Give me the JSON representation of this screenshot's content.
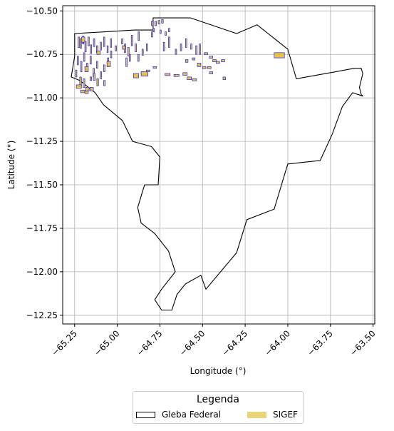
{
  "colors": {
    "sigef_fill": "#e8c146",
    "sigef_edge": "#2222dd",
    "gleba_edge": "#000000",
    "grid": "#b0b0b0"
  },
  "chart_data": {
    "type": "map",
    "xlabel": "Longitude (°)",
    "ylabel": "Latitude (°)",
    "xlim": [
      -65.32,
      -63.49
    ],
    "ylim": [
      -12.3,
      -10.47
    ],
    "x_ticks": [
      -65.25,
      -65.0,
      -64.75,
      -64.5,
      -64.25,
      -64.0,
      -63.75,
      -63.5
    ],
    "y_ticks": [
      -10.5,
      -10.75,
      -11.0,
      -11.25,
      -11.5,
      -11.75,
      -12.0,
      -12.25
    ],
    "x_tick_labels": [
      "−65.25",
      "−65.00",
      "−64.75",
      "−64.50",
      "−64.25",
      "−64.00",
      "−63.75",
      "−63.50"
    ],
    "y_tick_labels": [
      "−10.50",
      "−10.75",
      "−11.00",
      "−11.25",
      "−11.50",
      "−11.75",
      "−12.00",
      "−12.25"
    ],
    "grid": true,
    "legend": {
      "title": "Legenda",
      "position": "bottom-center",
      "entries": [
        {
          "label": "Gleba Federal",
          "style": "outline"
        },
        {
          "label": "SIGEF",
          "style": "fill"
        }
      ]
    },
    "gleba_outline": [
      [
        -65.25,
        -10.63
      ],
      [
        -65.07,
        -10.62
      ],
      [
        -64.9,
        -10.61
      ],
      [
        -64.79,
        -10.61
      ],
      [
        -64.79,
        -10.54
      ],
      [
        -64.57,
        -10.54
      ],
      [
        -64.3,
        -10.63
      ],
      [
        -64.18,
        -10.58
      ],
      [
        -64.0,
        -10.72
      ],
      [
        -63.95,
        -10.89
      ],
      [
        -63.72,
        -10.85
      ],
      [
        -63.61,
        -10.83
      ],
      [
        -63.57,
        -10.83
      ],
      [
        -63.56,
        -10.86
      ],
      [
        -63.58,
        -10.94
      ],
      [
        -63.57,
        -10.98
      ],
      [
        -63.56,
        -10.99
      ],
      [
        -63.62,
        -10.97
      ],
      [
        -63.68,
        -11.05
      ],
      [
        -63.74,
        -11.21
      ],
      [
        -63.81,
        -11.36
      ],
      [
        -64.0,
        -11.38
      ],
      [
        -64.08,
        -11.64
      ],
      [
        -64.24,
        -11.7
      ],
      [
        -64.3,
        -11.89
      ],
      [
        -64.48,
        -12.1
      ],
      [
        -64.51,
        -12.02
      ],
      [
        -64.6,
        -12.07
      ],
      [
        -64.65,
        -12.13
      ],
      [
        -64.68,
        -12.22
      ],
      [
        -64.74,
        -12.22
      ],
      [
        -64.78,
        -12.16
      ],
      [
        -64.74,
        -12.1
      ],
      [
        -64.66,
        -12.0
      ],
      [
        -64.7,
        -11.88
      ],
      [
        -64.78,
        -11.78
      ],
      [
        -64.86,
        -11.72
      ],
      [
        -64.88,
        -11.63
      ],
      [
        -64.84,
        -11.5
      ],
      [
        -64.76,
        -11.5
      ],
      [
        -64.75,
        -11.34
      ],
      [
        -64.8,
        -11.28
      ],
      [
        -64.91,
        -11.25
      ],
      [
        -64.97,
        -11.13
      ],
      [
        -65.08,
        -11.04
      ],
      [
        -65.13,
        -10.97
      ],
      [
        -65.22,
        -10.9
      ],
      [
        -65.27,
        -10.88
      ],
      [
        -65.25,
        -10.76
      ]
    ],
    "sigef_parcels": [
      [
        -65.23,
        -10.65,
        0.008,
        0.06
      ],
      [
        -65.218,
        -10.66,
        0.008,
        0.055
      ],
      [
        -65.204,
        -10.645,
        0.008,
        0.045
      ],
      [
        -65.19,
        -10.675,
        0.008,
        0.06
      ],
      [
        -65.172,
        -10.65,
        0.008,
        0.05
      ],
      [
        -65.158,
        -10.695,
        0.008,
        0.05
      ],
      [
        -65.14,
        -10.66,
        0.008,
        0.045
      ],
      [
        -65.122,
        -10.7,
        0.008,
        0.04
      ],
      [
        -65.1,
        -10.68,
        0.007,
        0.045
      ],
      [
        -65.08,
        -10.65,
        0.007,
        0.055
      ],
      [
        -65.06,
        -10.7,
        0.007,
        0.04
      ],
      [
        -65.04,
        -10.66,
        0.007,
        0.05
      ],
      [
        -65.012,
        -10.7,
        0.008,
        0.03
      ],
      [
        -65.235,
        -10.76,
        0.008,
        0.05
      ],
      [
        -65.215,
        -10.79,
        0.008,
        0.06
      ],
      [
        -65.198,
        -10.74,
        0.008,
        0.05
      ],
      [
        -65.18,
        -10.8,
        0.008,
        0.05
      ],
      [
        -65.16,
        -10.76,
        0.008,
        0.045
      ],
      [
        -65.142,
        -10.83,
        0.008,
        0.05
      ],
      [
        -65.122,
        -10.79,
        0.008,
        0.04
      ],
      [
        -65.1,
        -10.85,
        0.008,
        0.04
      ],
      [
        -65.08,
        -10.81,
        0.008,
        0.04
      ],
      [
        -65.058,
        -10.77,
        0.008,
        0.05
      ],
      [
        -65.04,
        -10.73,
        0.008,
        0.04
      ],
      [
        -65.22,
        -10.88,
        0.01,
        0.05
      ],
      [
        -65.2,
        -10.89,
        0.01,
        0.05
      ],
      [
        -65.185,
        -10.94,
        0.02,
        0.02
      ],
      [
        -65.16,
        -10.94,
        0.02,
        0.02
      ],
      [
        -65.14,
        -10.86,
        0.01,
        0.04
      ],
      [
        -65.12,
        -10.89,
        0.01,
        0.04
      ],
      [
        -65.24,
        -10.925,
        0.03,
        0.02
      ],
      [
        -65.215,
        -10.955,
        0.025,
        0.015
      ],
      [
        -65.19,
        -10.96,
        0.02,
        0.015
      ],
      [
        -64.975,
        -10.66,
        0.008,
        0.03
      ],
      [
        -64.958,
        -10.69,
        0.008,
        0.05
      ],
      [
        -64.938,
        -10.71,
        0.008,
        0.05
      ],
      [
        -64.918,
        -10.64,
        0.008,
        0.06
      ],
      [
        -64.895,
        -10.69,
        0.008,
        0.045
      ],
      [
        -64.878,
        -10.62,
        0.008,
        0.05
      ],
      [
        -64.855,
        -10.72,
        0.008,
        0.035
      ],
      [
        -64.83,
        -10.69,
        0.008,
        0.04
      ],
      [
        -64.8,
        -10.62,
        0.008,
        0.03
      ],
      [
        -64.95,
        -10.77,
        0.008,
        0.05
      ],
      [
        -64.93,
        -10.75,
        0.008,
        0.04
      ],
      [
        -64.88,
        -10.75,
        0.008,
        0.04
      ],
      [
        -64.905,
        -10.86,
        0.03,
        0.025
      ],
      [
        -64.86,
        -10.85,
        0.02,
        0.012
      ],
      [
        -64.83,
        -10.84,
        0.02,
        0.01
      ],
      [
        -64.79,
        -10.82,
        0.02,
        0.01
      ],
      [
        -64.72,
        -10.86,
        0.03,
        0.012
      ],
      [
        -64.668,
        -10.865,
        0.03,
        0.012
      ],
      [
        -64.615,
        -10.855,
        0.025,
        0.015
      ],
      [
        -64.59,
        -10.88,
        0.025,
        0.015
      ],
      [
        -64.56,
        -10.89,
        0.025,
        0.012
      ],
      [
        -64.73,
        -10.68,
        0.008,
        0.05
      ],
      [
        -64.7,
        -10.65,
        0.008,
        0.06
      ],
      [
        -64.66,
        -10.72,
        0.008,
        0.03
      ],
      [
        -64.63,
        -10.69,
        0.008,
        0.04
      ],
      [
        -64.6,
        -10.66,
        0.008,
        0.05
      ],
      [
        -64.57,
        -10.69,
        0.008,
        0.03
      ],
      [
        -64.54,
        -10.7,
        0.008,
        0.05
      ],
      [
        -64.52,
        -10.69,
        0.008,
        0.06
      ],
      [
        -64.49,
        -10.74,
        0.02,
        0.012
      ],
      [
        -64.46,
        -10.76,
        0.02,
        0.012
      ],
      [
        -64.44,
        -10.78,
        0.02,
        0.012
      ],
      [
        -64.42,
        -10.79,
        0.02,
        0.012
      ],
      [
        -64.39,
        -10.78,
        0.02,
        0.012
      ],
      [
        -64.56,
        -10.77,
        0.015,
        0.012
      ],
      [
        -64.53,
        -10.8,
        0.02,
        0.02
      ],
      [
        -64.5,
        -10.82,
        0.02,
        0.012
      ],
      [
        -64.47,
        -10.82,
        0.02,
        0.012
      ],
      [
        -64.46,
        -10.85,
        0.02,
        0.012
      ],
      [
        -64.38,
        -10.88,
        0.015,
        0.015
      ],
      [
        -64.6,
        -10.78,
        0.015,
        0.015
      ],
      [
        -64.8,
        -10.56,
        0.01,
        0.025
      ],
      [
        -64.78,
        -10.56,
        0.01,
        0.025
      ],
      [
        -64.76,
        -10.555,
        0.01,
        0.02
      ],
      [
        -64.74,
        -10.55,
        0.01,
        0.02
      ],
      [
        -64.79,
        -10.6,
        0.008,
        0.02
      ],
      [
        -64.75,
        -10.61,
        0.008,
        0.02
      ],
      [
        -64.72,
        -10.62,
        0.008,
        0.02
      ],
      [
        -64.7,
        -10.6,
        0.008,
        0.02
      ],
      [
        -64.08,
        -10.74,
        0.06,
        0.03
      ],
      [
        -64.86,
        -10.85,
        0.04,
        0.025
      ],
      [
        -65.06,
        -10.79,
        0.02,
        0.03
      ],
      [
        -65.19,
        -10.82,
        0.02,
        0.03
      ],
      [
        -65.21,
        -10.65,
        0.02,
        0.03
      ],
      [
        -65.12,
        -10.73,
        0.02,
        0.02
      ],
      [
        -64.97,
        -10.7,
        0.015,
        0.02
      ],
      [
        -65.16,
        -10.88,
        0.01,
        0.02
      ],
      [
        -65.245,
        -10.84,
        0.008,
        0.04
      ],
      [
        -65.08,
        -10.9,
        0.01,
        0.03
      ]
    ]
  }
}
